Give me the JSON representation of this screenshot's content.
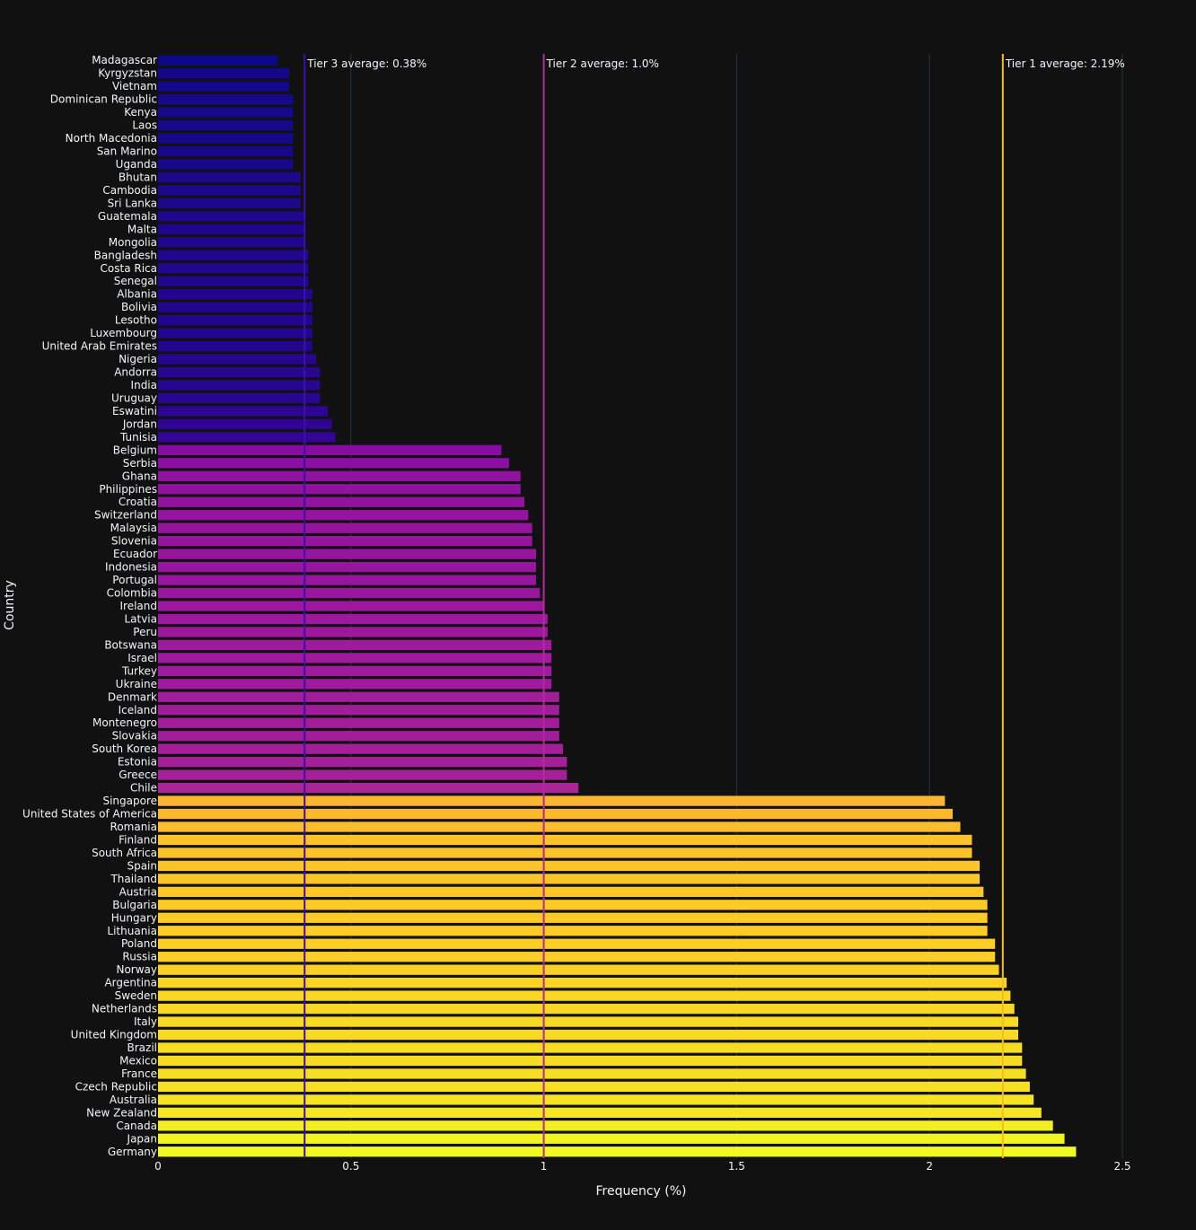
{
  "chart_data": {
    "type": "bar",
    "orientation": "horizontal",
    "title": "",
    "xlabel": "Frequency (%)",
    "ylabel": "Country",
    "xlim": [
      0,
      2.5
    ],
    "xticks": [
      0,
      0.5,
      1,
      1.5,
      2,
      2.5
    ],
    "xtick_labels": [
      "0",
      "0.5",
      "1",
      "1.5",
      "2",
      "2.5"
    ],
    "grid": true,
    "background": "#111111",
    "categories": [
      "Madagascar",
      "Kyrgyzstan",
      "Vietnam",
      "Dominican Republic",
      "Kenya",
      "Laos",
      "North Macedonia",
      "San Marino",
      "Uganda",
      "Bhutan",
      "Cambodia",
      "Sri Lanka",
      "Guatemala",
      "Malta",
      "Mongolia",
      "Bangladesh",
      "Costa Rica",
      "Senegal",
      "Albania",
      "Bolivia",
      "Lesotho",
      "Luxembourg",
      "United Arab Emirates",
      "Nigeria",
      "Andorra",
      "India",
      "Uruguay",
      "Eswatini",
      "Jordan",
      "Tunisia",
      "Belgium",
      "Serbia",
      "Ghana",
      "Philippines",
      "Croatia",
      "Switzerland",
      "Malaysia",
      "Slovenia",
      "Ecuador",
      "Indonesia",
      "Portugal",
      "Colombia",
      "Ireland",
      "Latvia",
      "Peru",
      "Botswana",
      "Israel",
      "Turkey",
      "Ukraine",
      "Denmark",
      "Iceland",
      "Montenegro",
      "Slovakia",
      "South Korea",
      "Estonia",
      "Greece",
      "Chile",
      "Singapore",
      "United States of America",
      "Romania",
      "Finland",
      "South Africa",
      "Spain",
      "Thailand",
      "Austria",
      "Bulgaria",
      "Hungary",
      "Lithuania",
      "Poland",
      "Russia",
      "Norway",
      "Argentina",
      "Sweden",
      "Netherlands",
      "Italy",
      "United Kingdom",
      "Brazil",
      "Mexico",
      "France",
      "Czech Republic",
      "Australia",
      "New Zealand",
      "Canada",
      "Japan",
      "Germany"
    ],
    "values": [
      0.31,
      0.34,
      0.34,
      0.35,
      0.35,
      0.35,
      0.35,
      0.35,
      0.35,
      0.37,
      0.37,
      0.37,
      0.38,
      0.38,
      0.38,
      0.39,
      0.39,
      0.39,
      0.4,
      0.4,
      0.4,
      0.4,
      0.4,
      0.41,
      0.42,
      0.42,
      0.42,
      0.44,
      0.45,
      0.46,
      0.89,
      0.91,
      0.94,
      0.94,
      0.95,
      0.96,
      0.97,
      0.97,
      0.98,
      0.98,
      0.98,
      0.99,
      1.0,
      1.01,
      1.01,
      1.02,
      1.02,
      1.02,
      1.02,
      1.04,
      1.04,
      1.04,
      1.04,
      1.05,
      1.06,
      1.06,
      1.09,
      2.04,
      2.06,
      2.08,
      2.11,
      2.11,
      2.13,
      2.13,
      2.14,
      2.15,
      2.15,
      2.15,
      2.17,
      2.17,
      2.18,
      2.2,
      2.21,
      2.22,
      2.23,
      2.23,
      2.24,
      2.24,
      2.25,
      2.26,
      2.27,
      2.29,
      2.32,
      2.35,
      2.38
    ],
    "reference_lines": [
      {
        "value": 0.38,
        "label": "Tier 3 average: 0.38%",
        "color": "#3d0fa5"
      },
      {
        "value": 1.0,
        "label": "Tier 2 average: 1.0%",
        "color": "#b22a9c"
      },
      {
        "value": 2.19,
        "label": "Tier 1 average: 2.19%",
        "color": "#f5bd22"
      }
    ],
    "colorscale": [
      "#0d0887",
      "#46039f",
      "#7201a8",
      "#9c179e",
      "#bd3786",
      "#d8576b",
      "#ed7953",
      "#fb9f3a",
      "#fdca26",
      "#f0f921"
    ]
  }
}
